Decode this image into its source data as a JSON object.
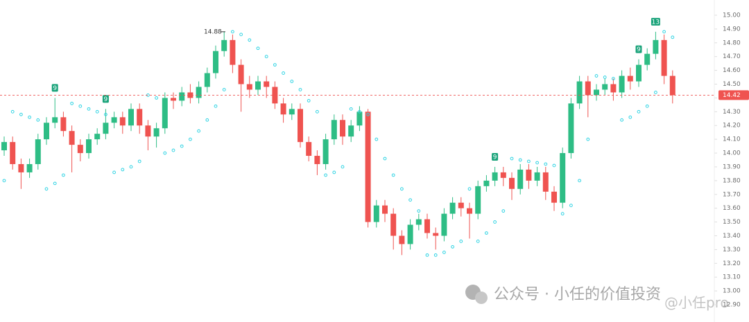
{
  "chart_data": {
    "type": "candlestick",
    "up_color": "#2ebd85",
    "down_color": "#ef5350",
    "sar_color": "#2fd3e3",
    "ylim": [
      12.86,
      15.04
    ],
    "yticks": [
      {
        "value": 15.0,
        "label": "15.00"
      },
      {
        "value": 14.9,
        "label": "14.90"
      },
      {
        "value": 14.8,
        "label": "14.80"
      },
      {
        "value": 14.7,
        "label": "14.70"
      },
      {
        "value": 14.6,
        "label": "14.60"
      },
      {
        "value": 14.5,
        "label": "14.50"
      },
      {
        "value": 14.4,
        "label": "14.40"
      },
      {
        "value": 14.3,
        "label": "14.30"
      },
      {
        "value": 14.2,
        "label": "14.20"
      },
      {
        "value": 14.1,
        "label": "14.10"
      },
      {
        "value": 14.0,
        "label": "14.00"
      },
      {
        "value": 13.9,
        "label": "13.90"
      },
      {
        "value": 13.8,
        "label": "13.80"
      },
      {
        "value": 13.7,
        "label": "13.70"
      },
      {
        "value": 13.6,
        "label": "13.60"
      },
      {
        "value": 13.5,
        "label": "13.50"
      },
      {
        "value": 13.4,
        "label": "13.40"
      },
      {
        "value": 13.3,
        "label": "13.30"
      },
      {
        "value": 13.2,
        "label": "13.20"
      },
      {
        "value": 13.1,
        "label": "13.10"
      },
      {
        "value": 13.0,
        "label": "13.00"
      },
      {
        "value": 12.9,
        "label": "12.90"
      }
    ],
    "open": [
      14.02,
      14.08,
      13.92,
      13.86,
      13.92,
      14.1,
      14.22,
      14.26,
      14.16,
      14.06,
      14.0,
      14.1,
      14.14,
      14.22,
      14.26,
      14.2,
      14.32,
      14.2,
      14.12,
      14.18,
      14.4,
      14.38,
      14.44,
      14.4,
      14.48,
      14.58,
      14.74,
      14.82,
      14.64,
      14.5,
      14.46,
      14.52,
      14.48,
      14.36,
      14.28,
      14.32,
      14.08,
      13.98,
      13.92,
      14.1,
      14.24,
      14.12,
      14.2,
      14.3,
      13.5,
      13.62,
      13.56,
      13.4,
      13.34,
      13.48,
      13.52,
      13.42,
      13.4,
      13.56,
      13.64,
      13.6,
      13.56,
      13.76,
      13.8,
      13.86,
      13.82,
      13.74,
      13.88,
      13.8,
      13.86,
      13.72,
      13.64,
      14.0,
      14.36,
      14.52,
      14.42,
      14.46,
      14.5,
      14.44,
      14.56,
      14.52,
      14.64,
      14.72,
      14.82,
      14.56
    ],
    "high": [
      14.12,
      14.12,
      13.96,
      13.96,
      14.14,
      14.26,
      14.4,
      14.3,
      14.2,
      14.1,
      14.14,
      14.18,
      14.32,
      14.3,
      14.3,
      14.36,
      14.36,
      14.24,
      14.22,
      14.44,
      14.44,
      14.48,
      14.5,
      14.52,
      14.62,
      14.78,
      14.88,
      14.86,
      14.68,
      14.56,
      14.56,
      14.56,
      14.52,
      14.4,
      14.36,
      14.36,
      14.12,
      14.02,
      14.14,
      14.28,
      14.28,
      14.24,
      14.34,
      14.32,
      13.66,
      13.66,
      13.6,
      13.44,
      13.52,
      13.56,
      13.56,
      13.46,
      13.6,
      13.68,
      13.68,
      13.64,
      13.8,
      13.84,
      13.9,
      13.9,
      13.86,
      13.92,
      13.92,
      13.9,
      13.9,
      13.76,
      14.04,
      14.4,
      14.56,
      14.56,
      14.5,
      14.54,
      14.54,
      14.6,
      14.62,
      14.68,
      14.76,
      14.88,
      14.86,
      14.6
    ],
    "low": [
      13.98,
      13.88,
      13.74,
      13.82,
      13.88,
      14.06,
      14.18,
      14.12,
      13.86,
      13.94,
      13.96,
      14.06,
      14.1,
      14.18,
      14.14,
      14.16,
      14.14,
      14.02,
      14.04,
      14.14,
      14.32,
      14.34,
      14.36,
      14.36,
      14.44,
      14.54,
      14.7,
      14.58,
      14.3,
      14.4,
      14.42,
      14.4,
      14.32,
      14.22,
      14.24,
      14.04,
      13.94,
      13.84,
      13.88,
      14.06,
      14.06,
      14.08,
      14.16,
      13.46,
      13.46,
      13.5,
      13.3,
      13.26,
      13.3,
      13.44,
      13.38,
      13.3,
      13.36,
      13.52,
      13.54,
      13.38,
      13.52,
      13.72,
      13.76,
      13.76,
      13.66,
      13.7,
      13.74,
      13.76,
      13.66,
      13.58,
      13.6,
      13.96,
      14.32,
      14.26,
      14.38,
      14.42,
      14.38,
      14.4,
      14.46,
      14.48,
      14.6,
      14.68,
      14.5,
      14.36
    ],
    "close": [
      14.08,
      13.92,
      13.86,
      13.92,
      14.1,
      14.22,
      14.26,
      14.16,
      14.06,
      14.0,
      14.1,
      14.14,
      14.22,
      14.26,
      14.2,
      14.32,
      14.2,
      14.12,
      14.18,
      14.4,
      14.38,
      14.44,
      14.4,
      14.48,
      14.58,
      14.74,
      14.82,
      14.64,
      14.5,
      14.46,
      14.52,
      14.48,
      14.36,
      14.28,
      14.32,
      14.08,
      13.98,
      13.92,
      14.1,
      14.24,
      14.12,
      14.2,
      14.3,
      13.5,
      13.62,
      13.56,
      13.4,
      13.34,
      13.48,
      13.52,
      13.42,
      13.4,
      13.56,
      13.64,
      13.6,
      13.56,
      13.76,
      13.8,
      13.86,
      13.82,
      13.74,
      13.88,
      13.8,
      13.86,
      13.72,
      13.64,
      14.0,
      14.36,
      14.52,
      14.42,
      14.46,
      14.5,
      14.44,
      14.56,
      14.52,
      14.64,
      14.72,
      14.82,
      14.56,
      14.42
    ],
    "sar": [
      13.8,
      14.3,
      14.28,
      14.26,
      14.24,
      13.74,
      13.78,
      13.84,
      14.36,
      14.34,
      14.32,
      14.3,
      14.28,
      13.86,
      13.88,
      13.9,
      13.94,
      14.42,
      14.4,
      14.0,
      14.02,
      14.05,
      14.1,
      14.16,
      14.24,
      14.34,
      14.46,
      14.88,
      14.86,
      14.82,
      14.76,
      14.7,
      14.64,
      14.58,
      14.52,
      14.46,
      14.38,
      14.3,
      13.84,
      13.86,
      13.9,
      14.32,
      14.3,
      14.28,
      14.1,
      13.96,
      13.84,
      13.74,
      13.66,
      13.58,
      13.26,
      13.26,
      13.28,
      13.32,
      13.36,
      13.74,
      13.36,
      13.42,
      13.5,
      13.58,
      13.96,
      13.95,
      13.94,
      13.93,
      13.92,
      13.91,
      13.56,
      13.62,
      13.8,
      14.1,
      14.56,
      14.55,
      14.54,
      14.24,
      14.26,
      14.3,
      14.34,
      14.44,
      14.88,
      14.84
    ],
    "setup_labels": [
      null,
      null,
      null,
      null,
      null,
      null,
      "9",
      null,
      null,
      null,
      null,
      null,
      "9",
      null,
      null,
      null,
      null,
      null,
      null,
      null,
      null,
      null,
      null,
      null,
      null,
      null,
      null,
      null,
      null,
      null,
      null,
      null,
      null,
      null,
      null,
      null,
      null,
      null,
      null,
      null,
      null,
      null,
      null,
      null,
      null,
      null,
      null,
      null,
      null,
      null,
      null,
      null,
      null,
      null,
      null,
      null,
      null,
      null,
      "9",
      null,
      null,
      null,
      null,
      null,
      null,
      null,
      null,
      null,
      null,
      null,
      null,
      null,
      null,
      null,
      null,
      "9",
      null,
      "13",
      null,
      null
    ],
    "high_annotation": {
      "value": 14.88,
      "label": "14.88"
    },
    "last_price": {
      "value": 14.42,
      "label": "14.42"
    },
    "watermark": "公众号 · 小任的价值投资",
    "watermark_handle": "@小任pro"
  }
}
